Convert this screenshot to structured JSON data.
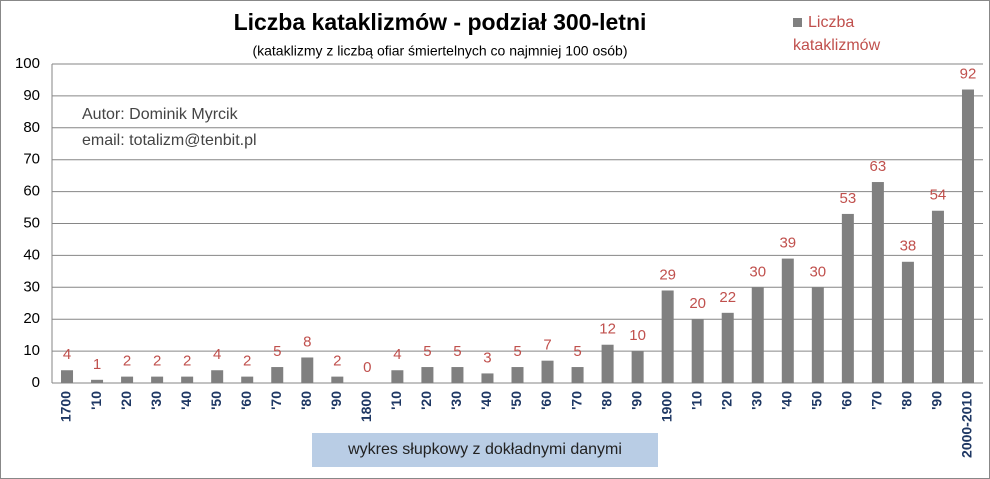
{
  "chart_data": {
    "type": "bar",
    "title": "Liczba kataklizmów - podział 300-letni",
    "subtitle": "(kataklizmy z liczbą ofiar śmiertelnych co najmniej 100 osób)",
    "annotations": [
      "Autor:  Dominik Myrcik",
      "email:  totalizm@tenbit.pl",
      "wykres słupkowy z dokładnymi danymi"
    ],
    "categories": [
      "1700",
      "'10",
      "'20",
      "'30",
      "'40",
      "'50",
      "'60",
      "'70",
      "'80",
      "'90",
      "1800",
      "'10",
      "'20",
      "'30",
      "'40",
      "'50",
      "'60",
      "'70",
      "'80",
      "'90",
      "1900",
      "'10",
      "'20",
      "'30",
      "'40",
      "'50",
      "'60",
      "'70",
      "'80",
      "'90",
      "2000-2010"
    ],
    "series": [
      {
        "name": "Liczba kataklizmów",
        "color": "#808080",
        "values": [
          4,
          1,
          2,
          2,
          2,
          4,
          2,
          5,
          8,
          2,
          0,
          4,
          5,
          5,
          3,
          5,
          7,
          5,
          12,
          10,
          29,
          20,
          22,
          30,
          39,
          30,
          53,
          63,
          38,
          54,
          92
        ]
      }
    ],
    "ylim": [
      0,
      100
    ],
    "yticks": [
      0,
      10,
      20,
      30,
      40,
      50,
      60,
      70,
      80,
      90,
      100
    ],
    "grid": true
  }
}
